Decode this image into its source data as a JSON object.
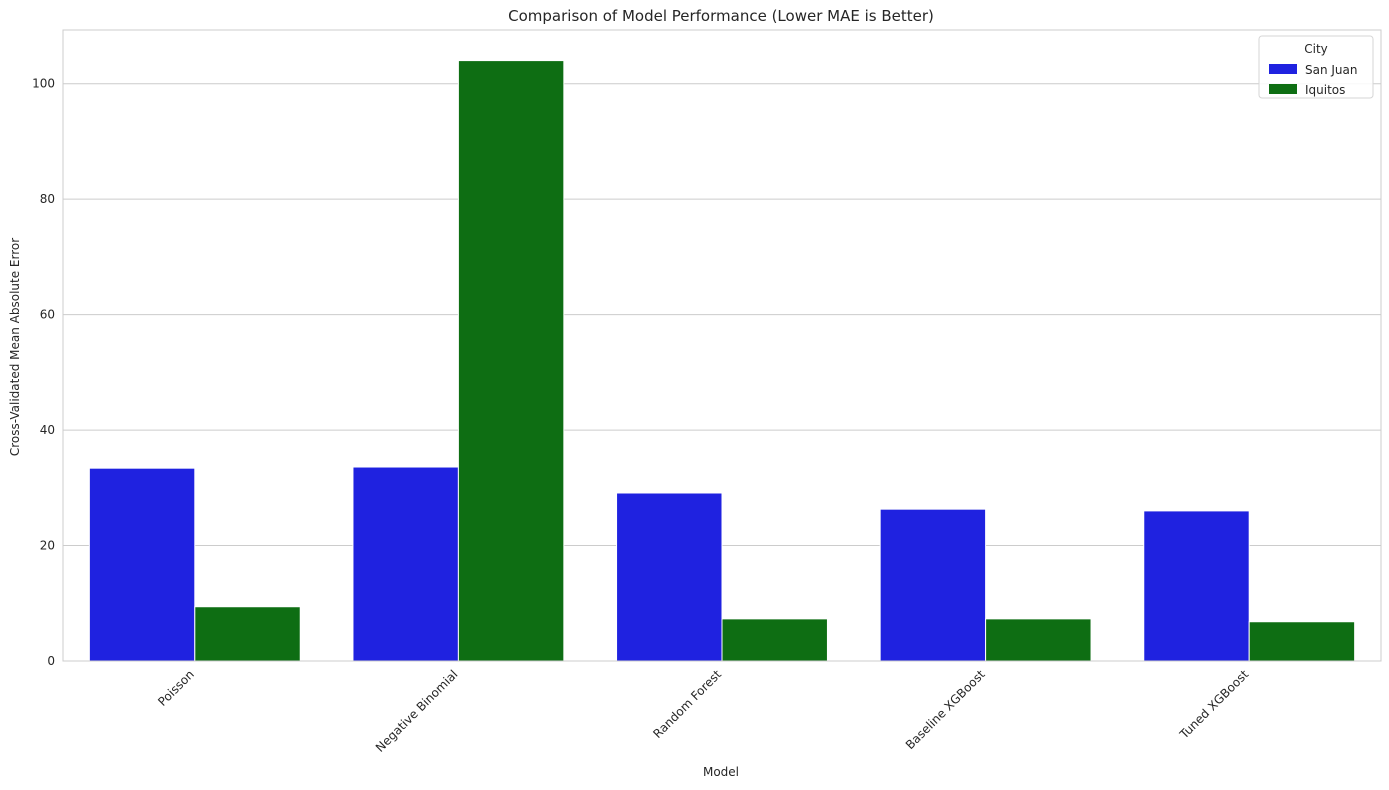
{
  "chart_data": {
    "type": "bar",
    "title": "Comparison of Model Performance (Lower MAE is Better)",
    "xlabel": "Model",
    "ylabel": "Cross-Validated Mean Absolute Error",
    "categories": [
      "Poisson",
      "Negative Binomial",
      "Random Forest",
      "Baseline XGBoost",
      "Tuned XGBoost"
    ],
    "series": [
      {
        "name": "San Juan",
        "color": "#1f22e0",
        "values": [
          33.4,
          33.6,
          29.1,
          26.3,
          26.0
        ]
      },
      {
        "name": "Iquitos",
        "color": "#0e6e13",
        "values": [
          9.4,
          104.0,
          7.3,
          7.3,
          6.8
        ]
      }
    ],
    "ylim": [
      0,
      109.3
    ],
    "yticks": [
      0,
      20,
      40,
      60,
      80,
      100
    ],
    "grid": "horizontal",
    "legend": {
      "title": "City",
      "position": "top-right"
    }
  }
}
